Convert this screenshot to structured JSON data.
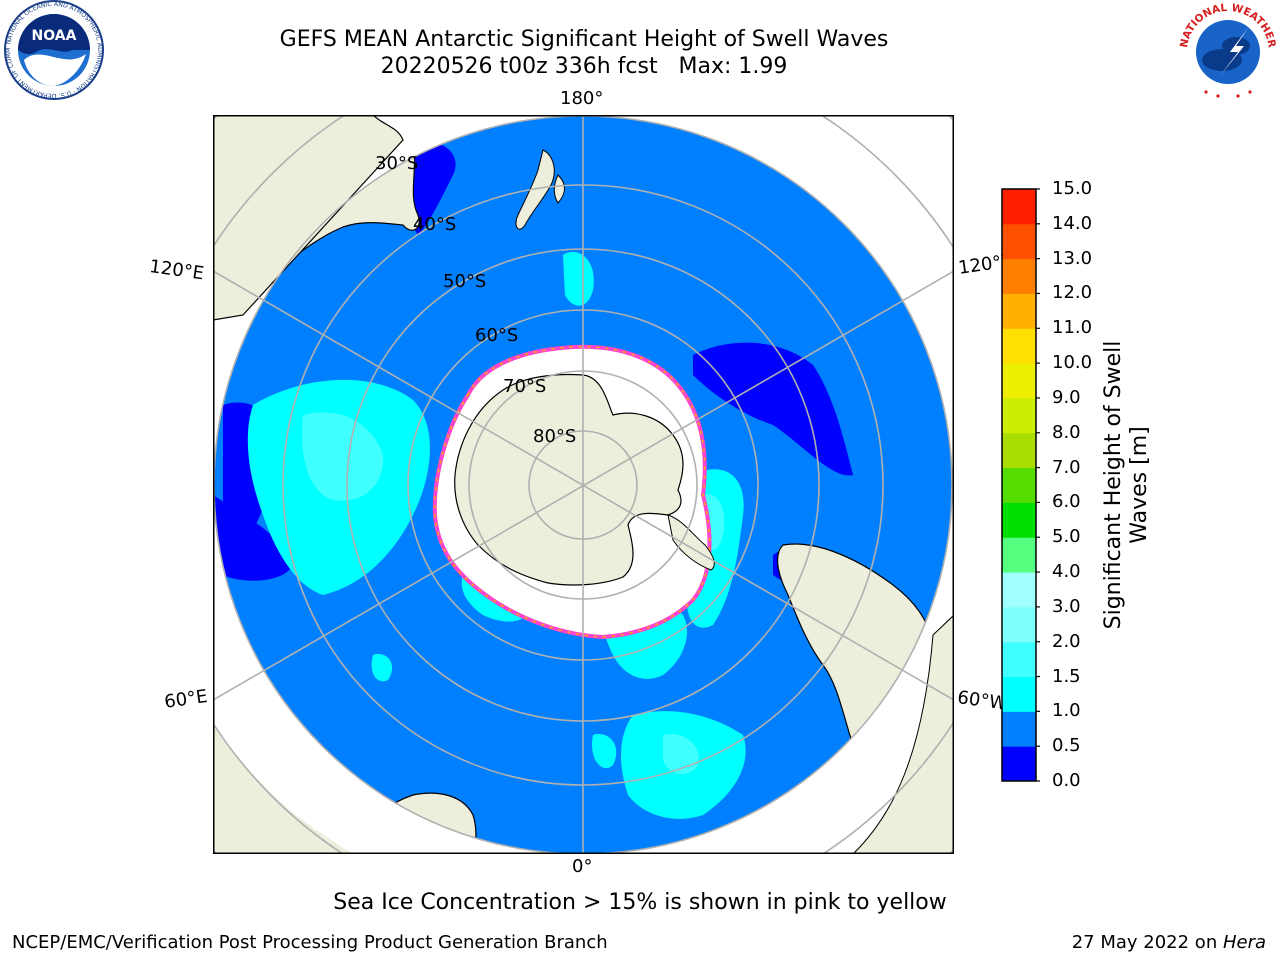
{
  "title": {
    "line1": "GEFS MEAN Antarctic Significant Height of Swell Waves",
    "line2": "20220526 t00z 336h fcst   Max: 1.99"
  },
  "caption": "Sea Ice Concentration > 15% is shown in pink to yellow",
  "footer": {
    "left": "NCEP/EMC/Verification Post Processing Product Generation Branch",
    "right_prefix": "27 May 2022 on ",
    "right_host": "Hera"
  },
  "map": {
    "projection": "south-polar-stereographic",
    "lon_labels": {
      "top": "180°",
      "bottom": "0°",
      "upper_left": "120°E",
      "lower_left": "60°E",
      "upper_right": "120°W",
      "lower_right": "60°W"
    },
    "lat_labels": [
      "30°S",
      "40°S",
      "50°S",
      "60°S",
      "70°S",
      "80°S"
    ],
    "colors": {
      "ocean_main": "#0080ff",
      "land": "#eeeedd",
      "ice": "#ffffff"
    }
  },
  "colorbar": {
    "label": "Significant Height of Swell\nWaves [m]",
    "ticks": [
      "0.0",
      "0.5",
      "1.0",
      "1.5",
      "2.0",
      "3.0",
      "4.0",
      "5.0",
      "6.0",
      "7.0",
      "8.0",
      "9.0",
      "10.0",
      "11.0",
      "12.0",
      "13.0",
      "14.0",
      "15.0"
    ],
    "colors": [
      "#0000ff",
      "#0080ff",
      "#00ffff",
      "#40ffff",
      "#80ffff",
      "#a0ffff",
      "#55ff80",
      "#00e000",
      "#55dd00",
      "#aadd00",
      "#ccee00",
      "#eeee00",
      "#ffe000",
      "#ffb000",
      "#ff8000",
      "#ff5000",
      "#ff2000"
    ]
  },
  "logos": {
    "noaa_text": "NOAA",
    "noaa_ring": "NATIONAL OCEANIC AND ATMOSPHERIC ADMINISTRATION · U.S. DEPARTMENT OF COMMERCE",
    "nws_ring": "NATIONAL WEATHER SERVICE"
  }
}
